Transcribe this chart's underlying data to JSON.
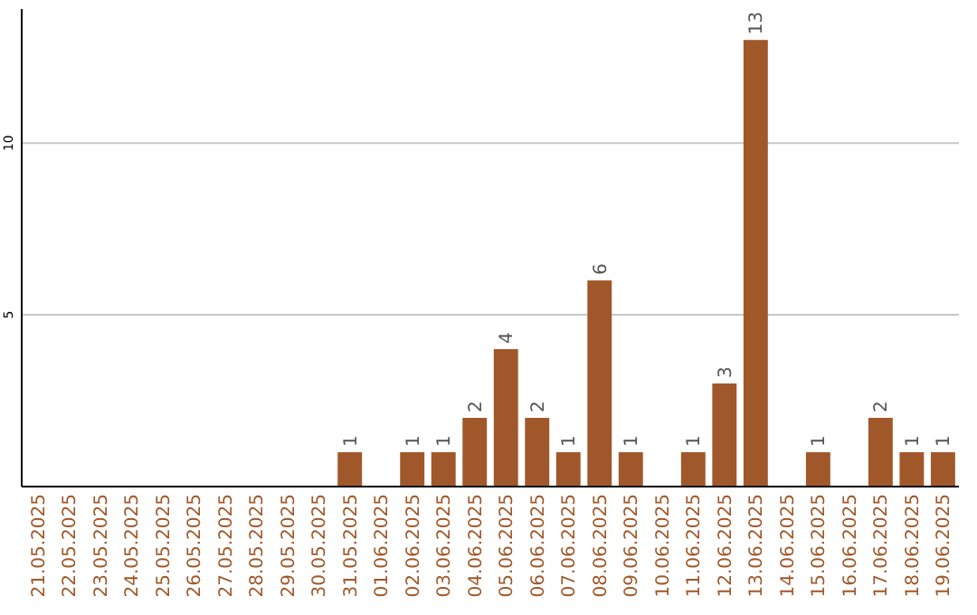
{
  "chart_data": {
    "type": "bar",
    "categories": [
      "21.05.2025",
      "22.05.2025",
      "23.05.2025",
      "24.05.2025",
      "25.05.2025",
      "26.05.2025",
      "27.05.2025",
      "28.05.2025",
      "29.05.2025",
      "30.05.2025",
      "31.05.2025",
      "01.06.2025",
      "02.06.2025",
      "03.06.2025",
      "04.06.2025",
      "05.06.2025",
      "06.06.2025",
      "07.06.2025",
      "08.06.2025",
      "09.06.2025",
      "10.06.2025",
      "11.06.2025",
      "12.06.2025",
      "13.06.2025",
      "14.06.2025",
      "15.06.2025",
      "16.06.2025",
      "17.06.2025",
      "18.06.2025",
      "19.06.2025"
    ],
    "values": [
      0,
      0,
      0,
      0,
      0,
      0,
      0,
      0,
      0,
      0,
      1,
      0,
      1,
      1,
      2,
      4,
      2,
      1,
      6,
      1,
      0,
      1,
      3,
      13,
      0,
      1,
      0,
      2,
      1,
      1
    ],
    "value_labels": [
      null,
      null,
      null,
      null,
      null,
      null,
      null,
      null,
      null,
      null,
      "1",
      null,
      "1",
      "1",
      "2",
      "4",
      "2",
      "1",
      "6",
      "1",
      null,
      "1",
      "3",
      "13",
      null,
      "1",
      null,
      "2",
      "1",
      "1"
    ],
    "color": "#a0582a",
    "ylim": [
      0,
      13.9
    ],
    "yticks": [
      5,
      10
    ],
    "grid": "y"
  }
}
